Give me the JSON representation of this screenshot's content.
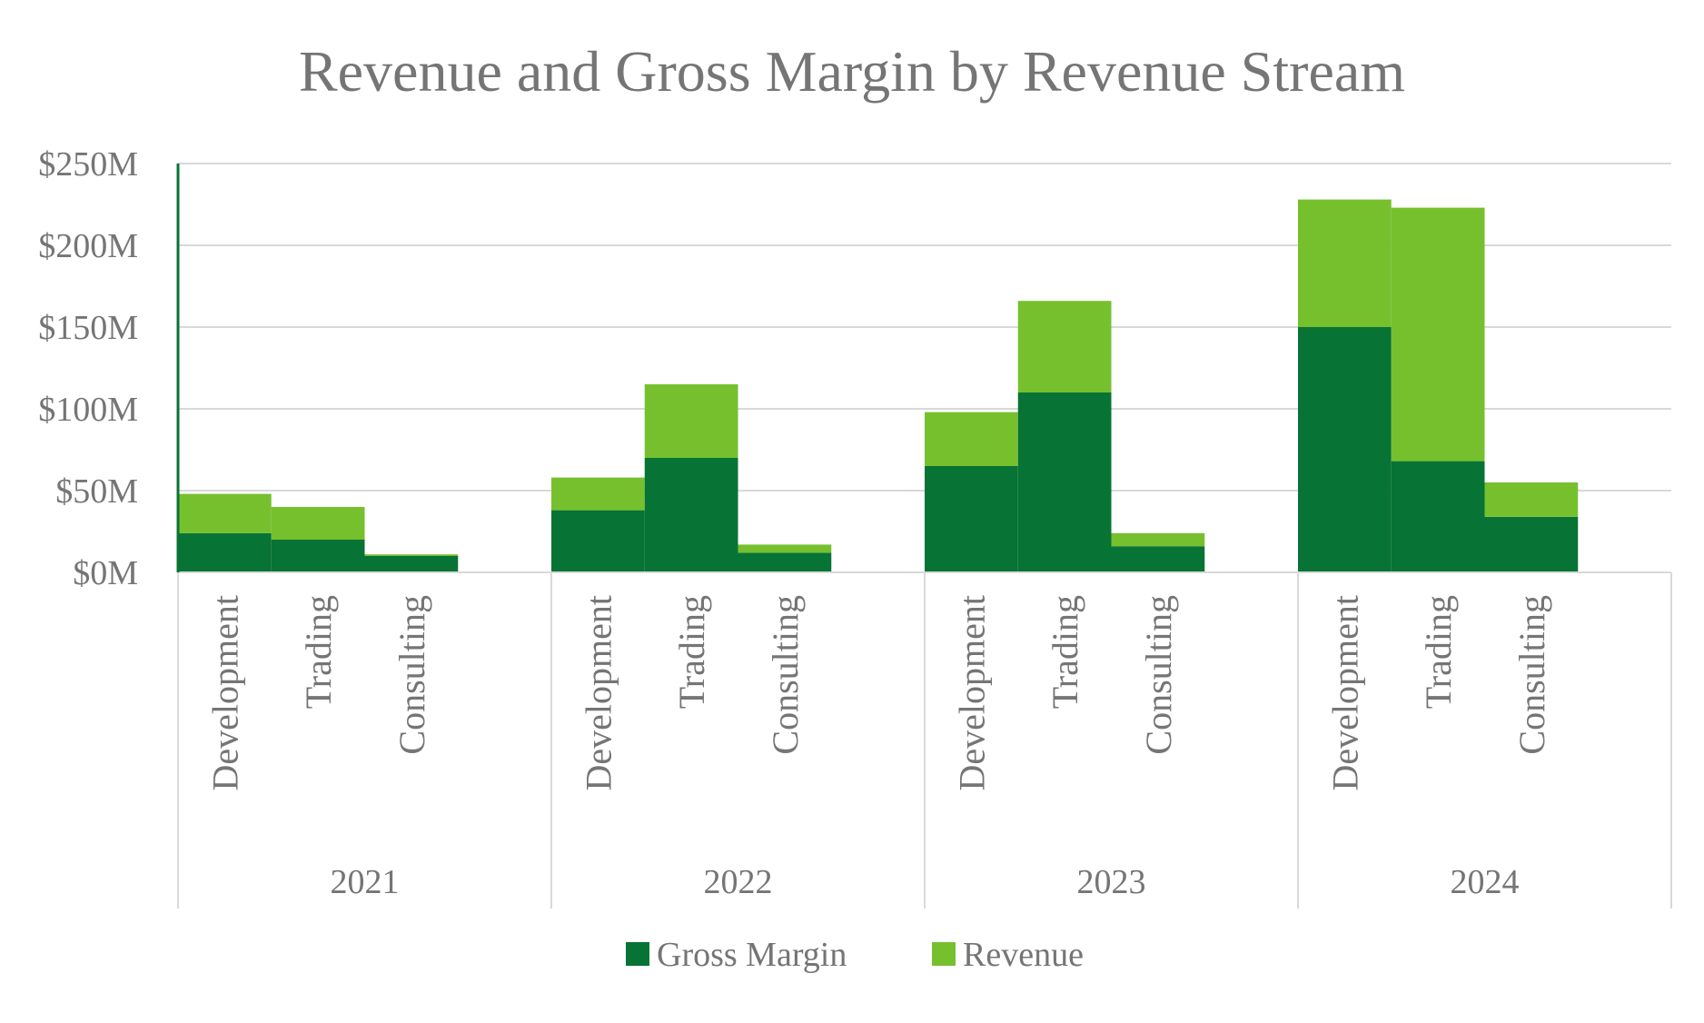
{
  "chart_data": {
    "type": "bar",
    "stacked": true,
    "title": "Revenue and Gross Margin by Revenue Stream",
    "xlabel": "",
    "ylabel": "",
    "ylim": [
      0,
      250
    ],
    "yunit": "$M",
    "yticks": [
      "$0M",
      "$50M",
      "$100M",
      "$150M",
      "$200M",
      "$250M"
    ],
    "ytick_values": [
      0,
      50,
      100,
      150,
      200,
      250
    ],
    "grid": true,
    "legend_position": "bottom",
    "groups": [
      "2021",
      "2022",
      "2023",
      "2024"
    ],
    "categories": [
      "Development",
      "Trading",
      "Consulting"
    ],
    "series": [
      {
        "name": "Gross Margin",
        "color": "#077335",
        "values": [
          [
            24,
            20,
            10
          ],
          [
            38,
            70,
            12
          ],
          [
            65,
            110,
            16
          ],
          [
            150,
            68,
            34
          ]
        ]
      },
      {
        "name": "Revenue",
        "color": "#76C02E",
        "values": [
          [
            24,
            20,
            1
          ],
          [
            20,
            45,
            5
          ],
          [
            33,
            56,
            8
          ],
          [
            78,
            155,
            21
          ]
        ]
      }
    ]
  }
}
